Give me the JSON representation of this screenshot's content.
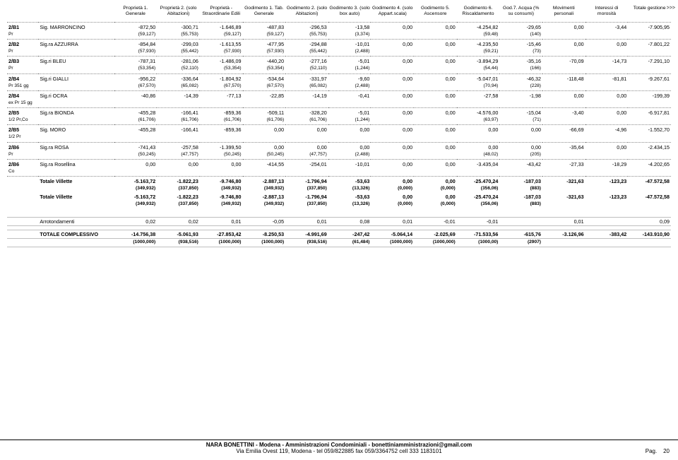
{
  "moreMarker": ">>>",
  "headers": [
    "Proprietà 1. Generale",
    "Proprietà 2. (solo Abitazioni)",
    "Proprietà - Straordinarie Edili",
    "Godimento 1. Tab. Generale",
    "Godimento 2. (solo Abitazioni)",
    "Godimento 3. (solo box auto)",
    "Godimento 4. (solo Appart.scala)",
    "Godimento 5. Ascensore",
    "Godimento 6. Riscaldamento",
    "God.7. Acqua (% su consumi)",
    "Movimenti personali",
    "Interessi di morosità",
    "Totale gestione"
  ],
  "rows": [
    {
      "code": "2/B1",
      "sub": "Pr",
      "name": "Sig. MARRONCINO",
      "v": [
        "-872,50",
        "-300,71",
        "-1.646,89",
        "-487,83",
        "-296,53",
        "-13,58",
        "0,00",
        "0,00",
        "-4.254,82",
        "-29,65",
        "0,00",
        "-3,44",
        "-7.905,95"
      ],
      "s": [
        "(59,127)",
        "(55,753)",
        "(59,127)",
        "(59,127)",
        "(55,753)",
        "(3,374)",
        "",
        "",
        "(59,48)",
        "(140)",
        "",
        "",
        ""
      ]
    },
    {
      "code": "2/B2",
      "sub": "Pr",
      "name": "Sig.ra AZZURRA",
      "v": [
        "-854,84",
        "-299,03",
        "-1.613,55",
        "-477,95",
        "-294,88",
        "-10,01",
        "0,00",
        "0,00",
        "-4.235,50",
        "-15,46",
        "0,00",
        "0,00",
        "-7.801,22"
      ],
      "s": [
        "(57,930)",
        "(55,442)",
        "(57,930)",
        "(57,930)",
        "(55,442)",
        "(2,488)",
        "",
        "",
        "(59,21)",
        "(73)",
        "",
        "",
        ""
      ]
    },
    {
      "code": "2/B3",
      "sub": "Pr",
      "name": "Sig.ri BLEU",
      "v": [
        "-787,31",
        "-281,06",
        "-1.486,09",
        "-440,20",
        "-277,16",
        "-5,01",
        "0,00",
        "0,00",
        "-3.894,29",
        "-35,16",
        "-70,09",
        "-14,73",
        "-7.291,10"
      ],
      "s": [
        "(53,354)",
        "(52,110)",
        "(53,354)",
        "(53,354)",
        "(52,110)",
        "(1,244)",
        "",
        "",
        "(54,44)",
        "(166)",
        "",
        "",
        ""
      ]
    },
    {
      "code": "2/B4",
      "sub": "Pr 351 gg",
      "name": "Sig.ri GIALLI",
      "v": [
        "-956,22",
        "-336,64",
        "-1.804,92",
        "-534,64",
        "-331,97",
        "-9,60",
        "0,00",
        "0,00",
        "-5.047,01",
        "-46,32",
        "-118,48",
        "-81,81",
        "-9.267,61"
      ],
      "s": [
        "(67,570)",
        "(65,082)",
        "(67,570)",
        "(67,570)",
        "(65,082)",
        "(2,488)",
        "",
        "",
        "(70,94)",
        "(228)",
        "",
        "",
        ""
      ]
    },
    {
      "code": "2/B4",
      "sub": "ex Pr 15 gg",
      "name": "Sig.ri OCRA",
      "v": [
        "-40,86",
        "-14,39",
        "-77,13",
        "-22,85",
        "-14,19",
        "-0,41",
        "0,00",
        "0,00",
        "-27,58",
        "-1,98",
        "0,00",
        "0,00",
        "-199,39"
      ],
      "s": [
        "",
        "",
        "",
        "",
        "",
        "",
        "",
        "",
        "",
        "",
        "",
        "",
        ""
      ]
    },
    {
      "code": "2/B5",
      "sub": "1/2 Pr,Co",
      "name": "Sig.ra BIONDA",
      "v": [
        "-455,28",
        "-166,41",
        "-859,36",
        "-509,11",
        "-328,20",
        "-5,01",
        "0,00",
        "0,00",
        "-4.576,00",
        "-15,04",
        "-3,40",
        "0,00",
        "-6.917,81"
      ],
      "s": [
        "(61,706)",
        "(61,706)",
        "(61,706)",
        "(61,706)",
        "(61,706)",
        "(1,244)",
        "",
        "",
        "(63,97)",
        "(71)",
        "",
        "",
        ""
      ]
    },
    {
      "code": "2/B5",
      "sub": "1/2 Pr",
      "name": "Sig. MORO",
      "v": [
        "-455,28",
        "-166,41",
        "-859,36",
        "0,00",
        "0,00",
        "0,00",
        "0,00",
        "0,00",
        "0,00",
        "0,00",
        "-66,69",
        "-4,96",
        "-1.552,70"
      ],
      "s": [
        "",
        "",
        "",
        "",
        "",
        "",
        "",
        "",
        "",
        "",
        "",
        "",
        ""
      ]
    },
    {
      "code": "2/B6",
      "sub": "Pr",
      "name": "Sig.ra ROSA",
      "v": [
        "-741,43",
        "-257,58",
        "-1.399,50",
        "0,00",
        "0,00",
        "0,00",
        "0,00",
        "0,00",
        "0,00",
        "0,00",
        "-35,64",
        "0,00",
        "-2.434,15"
      ],
      "s": [
        "(50,245)",
        "(47,757)",
        "(50,245)",
        "(50,245)",
        "(47,757)",
        "(2,488)",
        "",
        "",
        "(48,02)",
        "(205)",
        "",
        "",
        ""
      ]
    },
    {
      "code": "2/B6",
      "sub": "Co",
      "name": "Sig.ra Rosellina",
      "v": [
        "0,00",
        "0,00",
        "0,00",
        "-414,55",
        "-254,01",
        "-10,01",
        "0,00",
        "0,00",
        "-3.435,04",
        "-43,42",
        "-27,33",
        "-18,29",
        "-4.202,65"
      ],
      "s": [
        "",
        "",
        "",
        "",
        "",
        "",
        "",
        "",
        "",
        "",
        "",
        "",
        ""
      ]
    }
  ],
  "subtotals": [
    {
      "label": "Totale Villette",
      "v": [
        "-5.163,72",
        "-1.822,23",
        "-9.746,80",
        "-2.887,13",
        "-1.796,94",
        "-53,63",
        "0,00",
        "0,00",
        "-25.470,24",
        "-187,03",
        "-321,63",
        "-123,23",
        "-47.572,58"
      ],
      "s": [
        "(349,932)",
        "(337,850)",
        "(349,932)",
        "(349,932)",
        "(337,850)",
        "(13,326)",
        "(0,000)",
        "(0,000)",
        "(356,06)",
        "(883)",
        "",
        "",
        ""
      ]
    },
    {
      "label": "Totale Villette",
      "v": [
        "-5.163,72",
        "-1.822,23",
        "-9.746,80",
        "-2.887,13",
        "-1.796,94",
        "-53,63",
        "0,00",
        "0,00",
        "-25.470,24",
        "-187,03",
        "-321,63",
        "-123,23",
        "-47.572,58"
      ],
      "s": [
        "(349,932)",
        "(337,850)",
        "(349,932)",
        "(349,932)",
        "(337,850)",
        "(13,326)",
        "(0,000)",
        "(0,000)",
        "(356,06)",
        "(883)",
        "",
        "",
        ""
      ]
    }
  ],
  "rounding": {
    "label": "Arrotondamenti",
    "v": [
      "0,02",
      "0,02",
      "0,01",
      "-0,05",
      "0,01",
      "0,08",
      "0,01",
      "-0,01",
      "-0,01",
      "",
      "0,01",
      "",
      "0,09"
    ]
  },
  "grand": {
    "label": "TOTALE COMPLESSIVO",
    "v": [
      "-14.756,38",
      "-5.061,93",
      "-27.853,42",
      "-8.250,53",
      "-4.991,69",
      "-247,42",
      "-5.064,14",
      "-2.025,69",
      "-71.533,56",
      "-615,76",
      "-3.126,96",
      "-383,42",
      "-143.910,90"
    ],
    "s": [
      "(1000,000)",
      "(938,516)",
      "(1000,000)",
      "(1000,000)",
      "(938,516)",
      "(61,484)",
      "(1000,000)",
      "(1000,000)",
      "(1000,00)",
      "(2907)",
      "",
      "",
      ""
    ]
  },
  "footer1": "NARA BONETTINI - Modena - Amministrazioni Condominiali - bonettiniamministrazioni@gmail.com",
  "footer2": "Via Emilia Ovest 119, Modena - tel 059/822885 fax 059/3364752 cell 333 1183101",
  "pageLabel": "Pag.",
  "pageNumber": "20"
}
